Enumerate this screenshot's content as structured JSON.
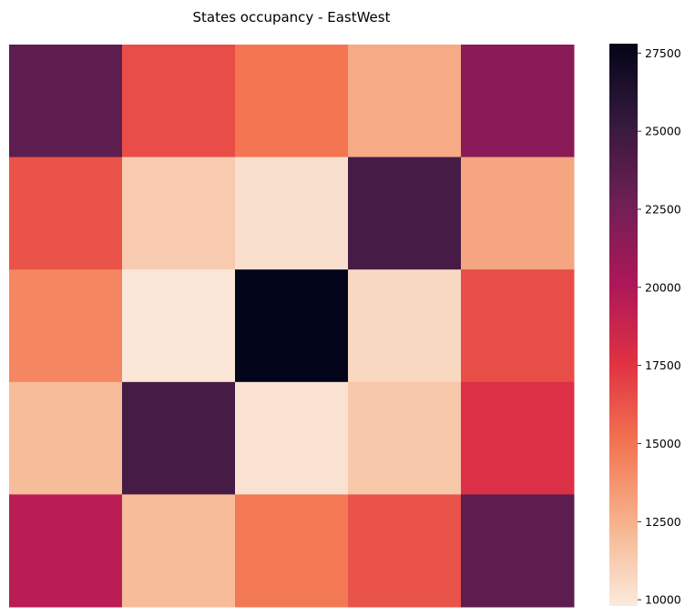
{
  "chart_data": {
    "type": "heatmap",
    "title": "States occupancy - EastWest",
    "xlabel": "",
    "ylabel": "",
    "rows": 5,
    "cols": 5,
    "values": [
      [
        23500,
        16500,
        15000,
        12800,
        21500
      ],
      [
        16300,
        11300,
        10300,
        24500,
        13000
      ],
      [
        14300,
        10000,
        27800,
        10700,
        16500
      ],
      [
        12000,
        24500,
        10200,
        11500,
        17800
      ],
      [
        19500,
        12000,
        14800,
        16300,
        23500
      ]
    ],
    "colorbar": {
      "min": 9800,
      "max": 27800,
      "ticks": [
        10000,
        12500,
        15000,
        17500,
        20000,
        22500,
        25000,
        27500
      ],
      "tick_labels": [
        "10000",
        "12500",
        "15000",
        "17500",
        "20000",
        "22500",
        "25000",
        "27500"
      ]
    },
    "colormap": "rocket_r",
    "colormap_stops": [
      "#faebdd",
      "#f6b48f",
      "#f37651",
      "#e13342",
      "#ad1759",
      "#701f57",
      "#35193e",
      "#03051a"
    ]
  }
}
